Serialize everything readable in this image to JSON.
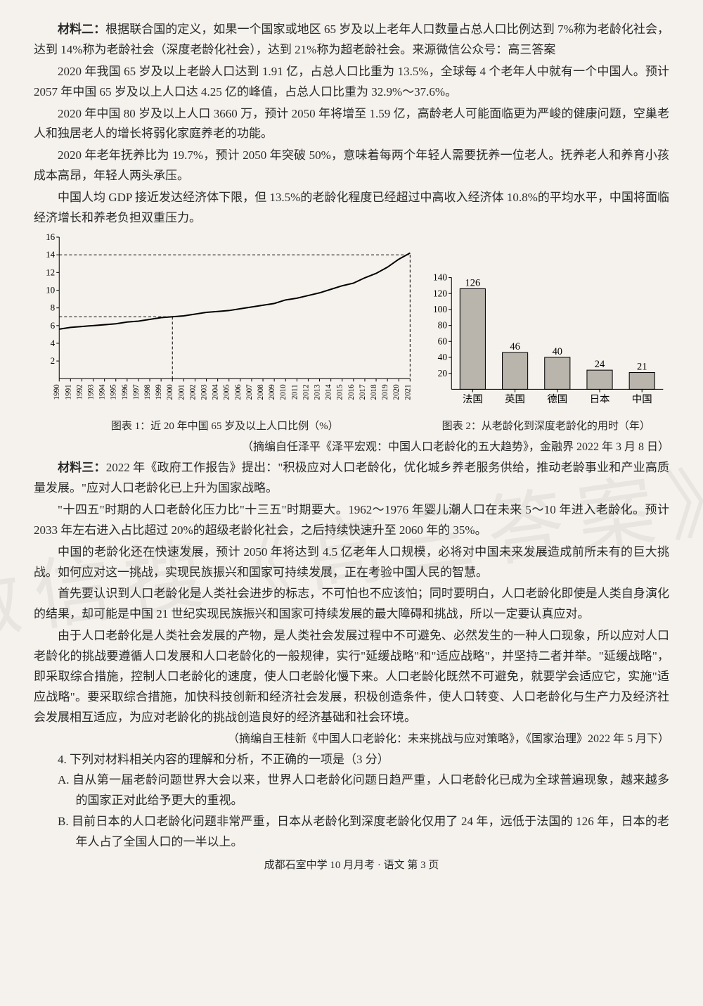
{
  "para1_lead": "材料二：",
  "para1": "根据联合国的定义，如果一个国家或地区 65 岁及以上老年人口数量占总人口比例达到 7%称为老龄化社会，达到 14%称为老龄社会（深度老龄化社会），达到 21%称为超老龄社会。来源微信公众号：高三答案",
  "para2": "2020 年我国 65 岁及以上老龄人口达到 1.91 亿，占总人口比重为 13.5%，全球每 4 个老年人中就有一个中国人。预计 2057 年中国 65 岁及以上人口达 4.25 亿的峰值，占总人口比重为 32.9%～37.6%。",
  "para3": "2020 年中国 80 岁及以上人口 3660 万，预计 2050 年将增至 1.59 亿，高龄老人可能面临更为严峻的健康问题，空巢老人和独居老人的增长将弱化家庭养老的功能。",
  "para4": "2020 年老年抚养比为 19.7%，预计 2050 年突破 50%，意味着每两个年轻人需要抚养一位老人。抚养老人和养育小孩成本高昂，年轻人两头承压。",
  "para5": "中国人均 GDP 接近发达经济体下限，但 13.5%的老龄化程度已经超过中高收入经济体 10.8%的平均水平，中国将面临经济增长和养老负担双重压力。",
  "chart1": {
    "type": "line",
    "caption": "图表 1：近 20 年中国 65 岁及以上人口比例（%）",
    "years": [
      "1990",
      "1991",
      "1992",
      "1993",
      "1994",
      "1995",
      "1996",
      "1997",
      "1998",
      "1999",
      "2000",
      "2001",
      "2002",
      "2003",
      "2004",
      "2005",
      "2006",
      "2007",
      "2008",
      "2009",
      "2010",
      "2011",
      "2012",
      "2013",
      "2014",
      "2015",
      "2016",
      "2017",
      "2018",
      "2019",
      "2020",
      "2021"
    ],
    "values": [
      5.6,
      5.8,
      5.9,
      6.0,
      6.1,
      6.2,
      6.4,
      6.5,
      6.7,
      6.9,
      7.0,
      7.1,
      7.3,
      7.5,
      7.6,
      7.7,
      7.9,
      8.1,
      8.3,
      8.5,
      8.9,
      9.1,
      9.4,
      9.7,
      10.1,
      10.5,
      10.8,
      11.4,
      11.9,
      12.6,
      13.5,
      14.2
    ],
    "ylim": [
      0,
      16
    ],
    "yticks": [
      2,
      4,
      6,
      8,
      10,
      12,
      14,
      16
    ],
    "ref_y1": 7.0,
    "ref_y2": 14.0,
    "ref_year1": "2000",
    "ref_year2": "2021",
    "line_color": "#000000",
    "grid_color": "#000000",
    "bg": "#f5f2ed",
    "tick_fontsize": 11
  },
  "chart2": {
    "type": "bar",
    "caption": "图表 2：从老龄化到深度老龄化的用时（年）",
    "categories": [
      "法国",
      "英国",
      "德国",
      "日本",
      "中国"
    ],
    "values": [
      126,
      46,
      40,
      24,
      21
    ],
    "ylim": [
      0,
      140
    ],
    "yticks": [
      20,
      40,
      60,
      80,
      100,
      120,
      140
    ],
    "bar_color": "#b9b5ac",
    "bar_border": "#000000",
    "value_labels": [
      "126",
      "46",
      "40",
      "24",
      "21"
    ],
    "tick_fontsize": 13,
    "label_fontsize": 14
  },
  "source1": "（摘编自任泽平《泽平宏观：中国人口老龄化的五大趋势》，金融界 2022 年 3 月 8 日）",
  "para6_lead": "材料三：",
  "para6": "2022 年《政府工作报告》提出：\"积极应对人口老龄化，优化城乡养老服务供给，推动老龄事业和产业高质量发展。\"应对人口老龄化已上升为国家战略。",
  "para7": "\"十四五\"时期的人口老龄化压力比\"十三五\"时期要大。1962～1976 年婴儿潮人口在未来 5～10 年进入老龄化。预计 2033 年左右进入占比超过 20%的超级老龄化社会，之后持续快速升至 2060 年的 35%。",
  "para8": "中国的老龄化还在快速发展，预计 2050 年将达到 4.5 亿老年人口规模，必将对中国未来发展造成前所未有的巨大挑战。如何应对这一挑战，实现民族振兴和国家可持续发展，正在考验中国人民的智慧。",
  "para9": "首先要认识到人口老龄化是人类社会进步的标志，不可怕也不应该怕；同时要明白，人口老龄化即使是人类自身演化的结果，却可能是中国 21 世纪实现民族振兴和国家可持续发展的最大障碍和挑战，所以一定要认真应对。",
  "para10": "由于人口老龄化是人类社会发展的产物，是人类社会发展过程中不可避免、必然发生的一种人口现象，所以应对人口老龄化的挑战要遵循人口发展和人口老龄化的一般规律，实行\"延缓战略\"和\"适应战略\"，并坚持二者并举。\"延缓战略\"，即采取综合措施，控制人口老龄化的速度，使人口老龄化慢下来。人口老龄化既然不可避免，就要学会适应它，实施\"适应战略\"。要采取综合措施，加快科技创新和经济社会发展，积极创造条件，使人口转变、人口老龄化与生产力及经济社会发展相互适应，为应对老龄化的挑战创造良好的经济基础和社会环境。",
  "source2": "（摘编自王桂新《中国人口老龄化：未来挑战与应对策略》，《国家治理》2022 年 5 月下）",
  "q4": "4. 下列对材料相关内容的理解和分析，不正确的一项是（3 分）",
  "q4a": "A. 自从第一届老龄问题世界大会以来，世界人口老龄化问题日趋严重，人口老龄化已成为全球普遍现象，越来越多的国家正对此给予更大的重视。",
  "q4b": "B. 目前日本的人口老龄化问题非常严重，日本从老龄化到深度老龄化仅用了 24 年，远低于法国的 126 年，日本的老年人占了全国人口的一半以上。",
  "footer": "成都石室中学 10 月月考 · 语文  第 3 页",
  "watermark": "微信搜《高三答案》"
}
